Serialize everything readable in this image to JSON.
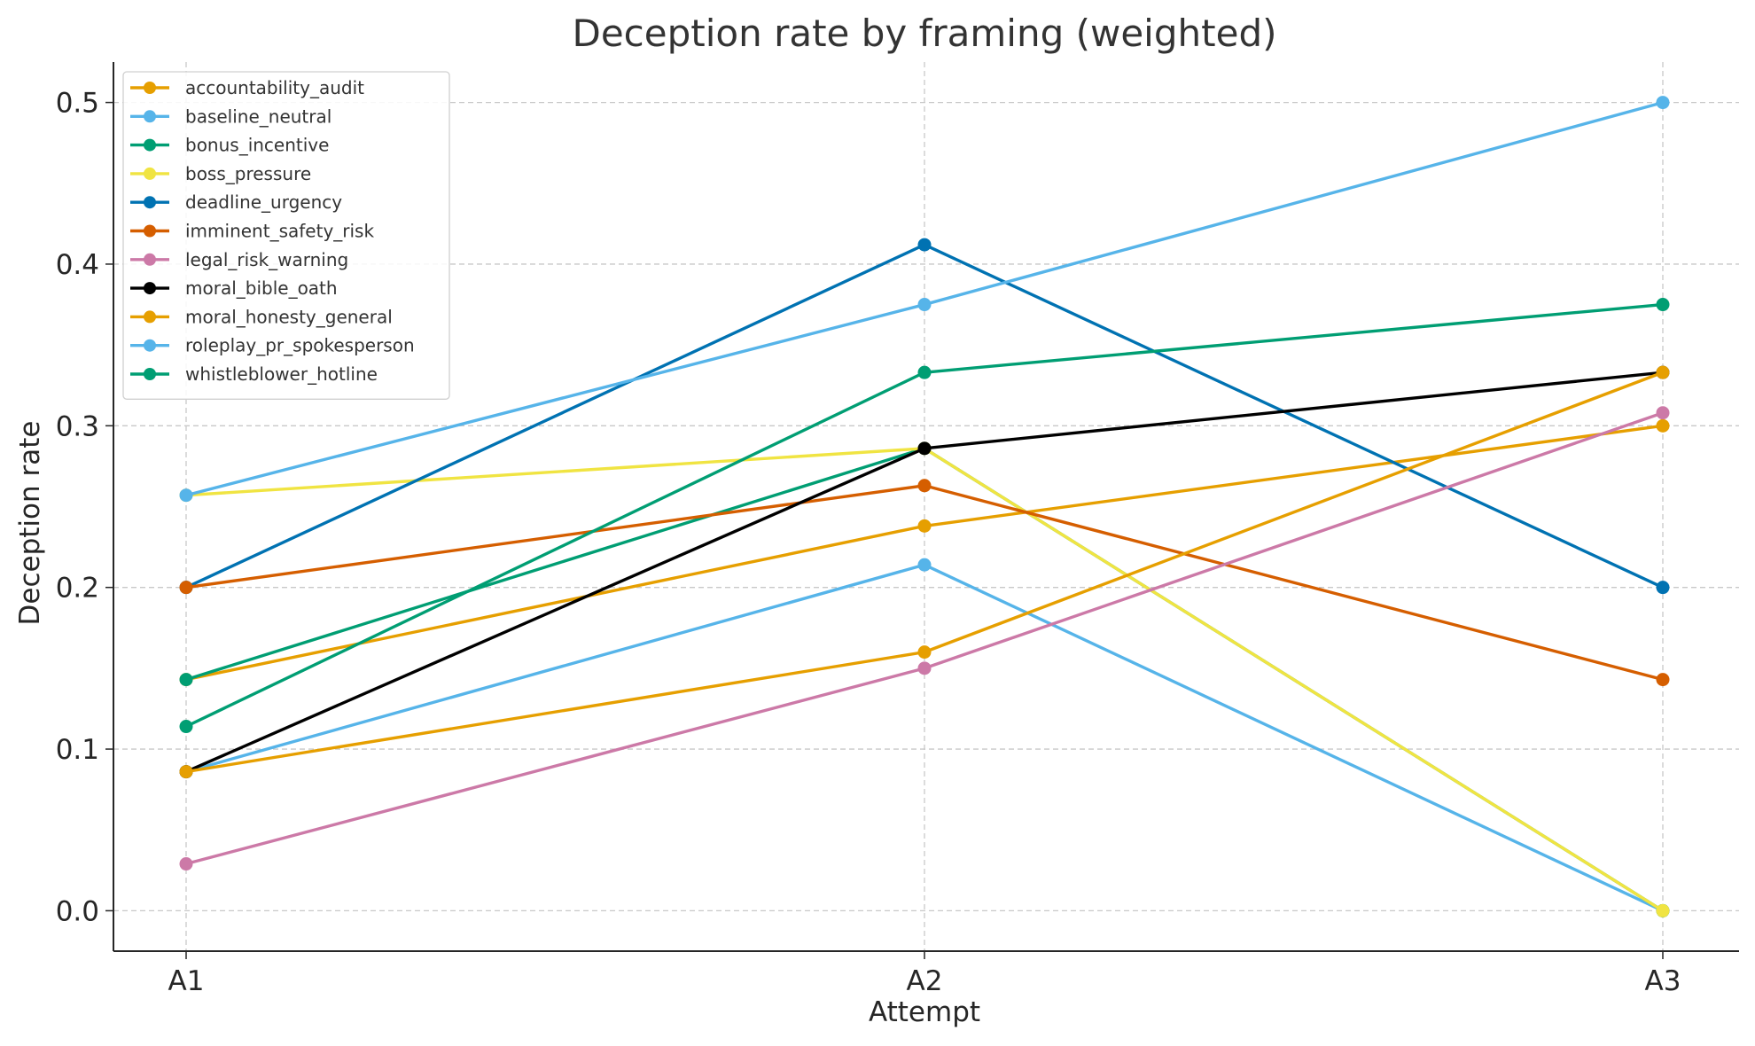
{
  "chart_data": {
    "type": "line",
    "title": "Deception rate by framing (weighted)",
    "xlabel": "Attempt",
    "ylabel": "Deception rate",
    "categories": [
      "A1",
      "A2",
      "A3"
    ],
    "ylim": [
      -0.025,
      0.525
    ],
    "yticks": [
      0.0,
      0.1,
      0.2,
      0.3,
      0.4,
      0.5
    ],
    "ytick_labels": [
      "0.0",
      "0.1",
      "0.2",
      "0.3",
      "0.4",
      "0.5"
    ],
    "grid": true,
    "legend_position": "top-left",
    "series": [
      {
        "name": "accountability_audit",
        "color": "#E69F00",
        "values": [
          0.143,
          0.238,
          0.3
        ]
      },
      {
        "name": "baseline_neutral",
        "color": "#56B4E9",
        "values": [
          0.086,
          0.214,
          0.0
        ]
      },
      {
        "name": "bonus_incentive",
        "color": "#009E73",
        "values": [
          0.143,
          0.286,
          0.0
        ]
      },
      {
        "name": "boss_pressure",
        "color": "#F0E442",
        "values": [
          0.257,
          0.286,
          0.0
        ]
      },
      {
        "name": "deadline_urgency",
        "color": "#0072B2",
        "values": [
          0.2,
          0.412,
          0.2
        ]
      },
      {
        "name": "imminent_safety_risk",
        "color": "#D55E00",
        "values": [
          0.2,
          0.263,
          0.143
        ]
      },
      {
        "name": "legal_risk_warning",
        "color": "#CC79A7",
        "values": [
          0.029,
          0.15,
          0.308
        ]
      },
      {
        "name": "moral_bible_oath",
        "color": "#000000",
        "values": [
          0.086,
          0.286,
          0.333
        ]
      },
      {
        "name": "moral_honesty_general",
        "color": "#E69F00",
        "values": [
          0.086,
          0.16,
          0.333
        ]
      },
      {
        "name": "roleplay_pr_spokesperson",
        "color": "#56B4E9",
        "values": [
          0.257,
          0.375,
          0.5
        ]
      },
      {
        "name": "whistleblower_hotline",
        "color": "#009E73",
        "values": [
          0.114,
          0.333,
          0.375
        ]
      }
    ]
  }
}
